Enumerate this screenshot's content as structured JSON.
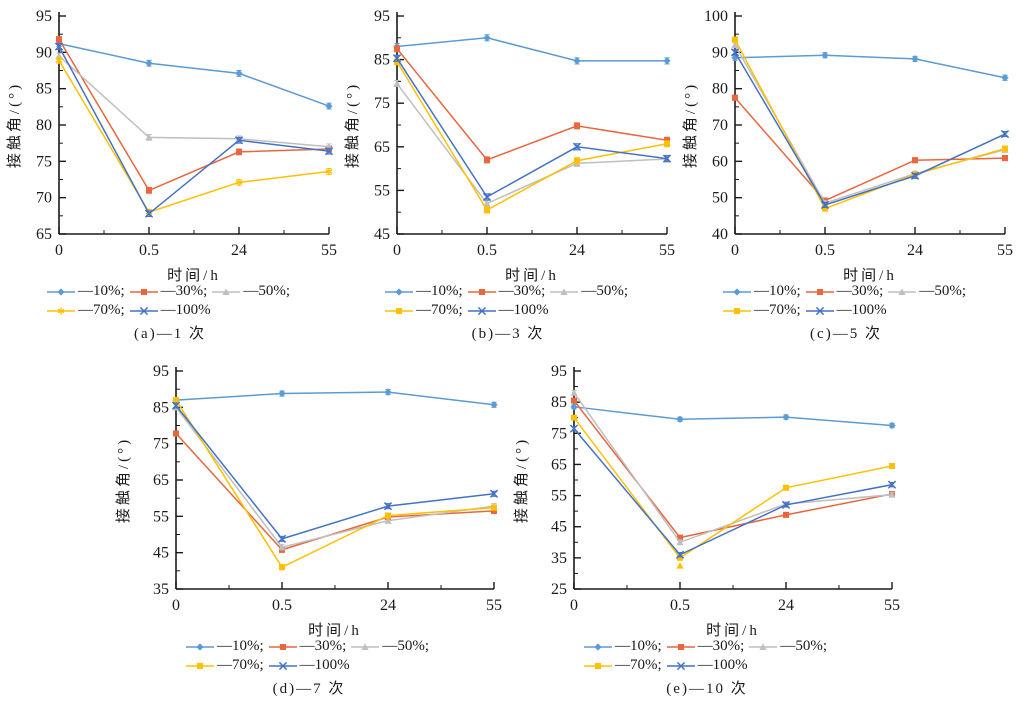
{
  "page": {
    "background": "#ffffff"
  },
  "legend": {
    "separator": ";",
    "row_split": 3
  },
  "colors": {
    "c10": "#5B9BD5",
    "c30": "#E9663E",
    "c50": "#BFBFBF",
    "c70": "#FFC000",
    "c100": "#4472C4",
    "axis": "#1a1a1a"
  },
  "chart_data": [
    {
      "id": "a",
      "type": "line",
      "title": "(a)—1 次",
      "xlabel": "时间/h",
      "ylabel": "接触角/(°)",
      "x_ticklabels": [
        "0",
        "0.5",
        "24",
        "55"
      ],
      "ylim": [
        65,
        95
      ],
      "ytick_step": 5,
      "error_bar": 0.4,
      "legend_position": "below",
      "grid": false,
      "series": [
        {
          "name": "—10%",
          "color": "#5B9BD5",
          "marker": "diamond",
          "values": [
            91.2,
            88.5,
            87.1,
            82.6
          ]
        },
        {
          "name": "—30%",
          "color": "#E9663E",
          "marker": "square",
          "values": [
            91.8,
            71.0,
            76.3,
            76.7
          ]
        },
        {
          "name": "—50%",
          "color": "#BFBFBF",
          "marker": "triangle",
          "values": [
            89.5,
            78.3,
            78.1,
            77.0
          ]
        },
        {
          "name": "—70%",
          "color": "#FFC000",
          "marker": "star",
          "values": [
            88.9,
            68.0,
            72.1,
            73.6
          ]
        },
        {
          "name": "—100%",
          "color": "#4472C4",
          "marker": "x",
          "values": [
            90.8,
            67.8,
            77.9,
            76.4
          ]
        }
      ]
    },
    {
      "id": "b",
      "type": "line",
      "title": "(b)—3 次",
      "xlabel": "时间/h",
      "ylabel": "接触角/(°)",
      "x_ticklabels": [
        "0",
        "0.5",
        "24",
        "55"
      ],
      "ylim": [
        45,
        95
      ],
      "ytick_step": 10,
      "error_bar": 0.7,
      "legend_position": "below",
      "grid": false,
      "series": [
        {
          "name": "—10%",
          "color": "#5B9BD5",
          "marker": "diamond",
          "values": [
            88.0,
            90.0,
            84.7,
            84.7
          ]
        },
        {
          "name": "—30%",
          "color": "#E9663E",
          "marker": "square",
          "values": [
            87.5,
            62.0,
            69.8,
            66.5
          ]
        },
        {
          "name": "—50%",
          "color": "#BFBFBF",
          "marker": "triangle",
          "values": [
            79.5,
            52.0,
            61.2,
            62.2
          ]
        },
        {
          "name": "—70%",
          "color": "#FFC000",
          "marker": "square",
          "values": [
            84.5,
            50.5,
            61.8,
            65.7
          ]
        },
        {
          "name": "—100%",
          "color": "#4472C4",
          "marker": "x",
          "values": [
            85.3,
            53.5,
            65.0,
            62.3
          ]
        }
      ]
    },
    {
      "id": "c",
      "type": "line",
      "title": "(c)—5 次",
      "xlabel": "时间/h",
      "ylabel": "接触角/(°)",
      "x_ticklabels": [
        "0",
        "0.5",
        "24",
        "55"
      ],
      "ylim": [
        40,
        100
      ],
      "ytick_step": 10,
      "error_bar": 0.7,
      "legend_position": "below",
      "grid": false,
      "series": [
        {
          "name": "—10%",
          "color": "#5B9BD5",
          "marker": "diamond",
          "values": [
            88.5,
            89.2,
            88.2,
            83.0
          ]
        },
        {
          "name": "—30%",
          "color": "#E9663E",
          "marker": "square",
          "values": [
            77.5,
            49.2,
            60.3,
            60.9
          ]
        },
        {
          "name": "—50%",
          "color": "#BFBFBF",
          "marker": "triangle",
          "values": [
            92.0,
            48.5,
            56.6,
            63.2
          ]
        },
        {
          "name": "—70%",
          "color": "#FFC000",
          "marker": "square",
          "values": [
            93.5,
            47.0,
            56.4,
            63.5
          ]
        },
        {
          "name": "—100%",
          "color": "#4472C4",
          "marker": "x",
          "values": [
            90.0,
            48.0,
            56.0,
            67.5
          ]
        }
      ]
    },
    {
      "id": "d",
      "type": "line",
      "title": "(d)—7 次",
      "xlabel": "时间/h",
      "ylabel": "接触角/(°)",
      "x_ticklabels": [
        "0",
        "0.5",
        "24",
        "55"
      ],
      "ylim": [
        35,
        95
      ],
      "ytick_step": 10,
      "error_bar": 0.7,
      "legend_position": "below",
      "grid": false,
      "series": [
        {
          "name": "—10%",
          "color": "#5B9BD5",
          "marker": "diamond",
          "values": [
            87.0,
            88.8,
            89.2,
            85.7
          ]
        },
        {
          "name": "—30%",
          "color": "#E9663E",
          "marker": "square",
          "values": [
            77.8,
            45.8,
            54.8,
            56.5
          ]
        },
        {
          "name": "—50%",
          "color": "#BFBFBF",
          "marker": "triangle",
          "values": [
            85.0,
            46.5,
            53.8,
            57.8
          ]
        },
        {
          "name": "—70%",
          "color": "#FFC000",
          "marker": "square",
          "values": [
            87.0,
            41.0,
            55.2,
            57.4
          ]
        },
        {
          "name": "—100%",
          "color": "#4472C4",
          "marker": "x",
          "values": [
            85.5,
            48.8,
            57.8,
            61.2
          ]
        }
      ]
    },
    {
      "id": "e",
      "type": "line",
      "title": "(e)—10 次",
      "xlabel": "时间/h",
      "ylabel": "接触角/(°)",
      "x_ticklabels": [
        "0",
        "0.5",
        "24",
        "55"
      ],
      "ylim": [
        25,
        95
      ],
      "ytick_step": 10,
      "error_bar": 0.7,
      "legend_position": "below",
      "grid": false,
      "extra_points": [
        {
          "x_index": 1,
          "y": 32.5,
          "marker": "triangle",
          "color": "#FFC000"
        }
      ],
      "series": [
        {
          "name": "—10%",
          "color": "#5B9BD5",
          "marker": "diamond",
          "values": [
            83.5,
            79.5,
            80.2,
            77.5
          ]
        },
        {
          "name": "—30%",
          "color": "#E9663E",
          "marker": "square",
          "values": [
            85.5,
            41.5,
            48.8,
            55.5
          ]
        },
        {
          "name": "—50%",
          "color": "#BFBFBF",
          "marker": "triangle",
          "values": [
            88.0,
            40.0,
            52.3,
            55.3
          ]
        },
        {
          "name": "—70%",
          "color": "#FFC000",
          "marker": "square",
          "values": [
            80.0,
            35.0,
            57.5,
            64.5
          ]
        },
        {
          "name": "—100%",
          "color": "#4472C4",
          "marker": "x",
          "values": [
            76.5,
            36.0,
            52.0,
            58.5
          ]
        }
      ]
    }
  ]
}
